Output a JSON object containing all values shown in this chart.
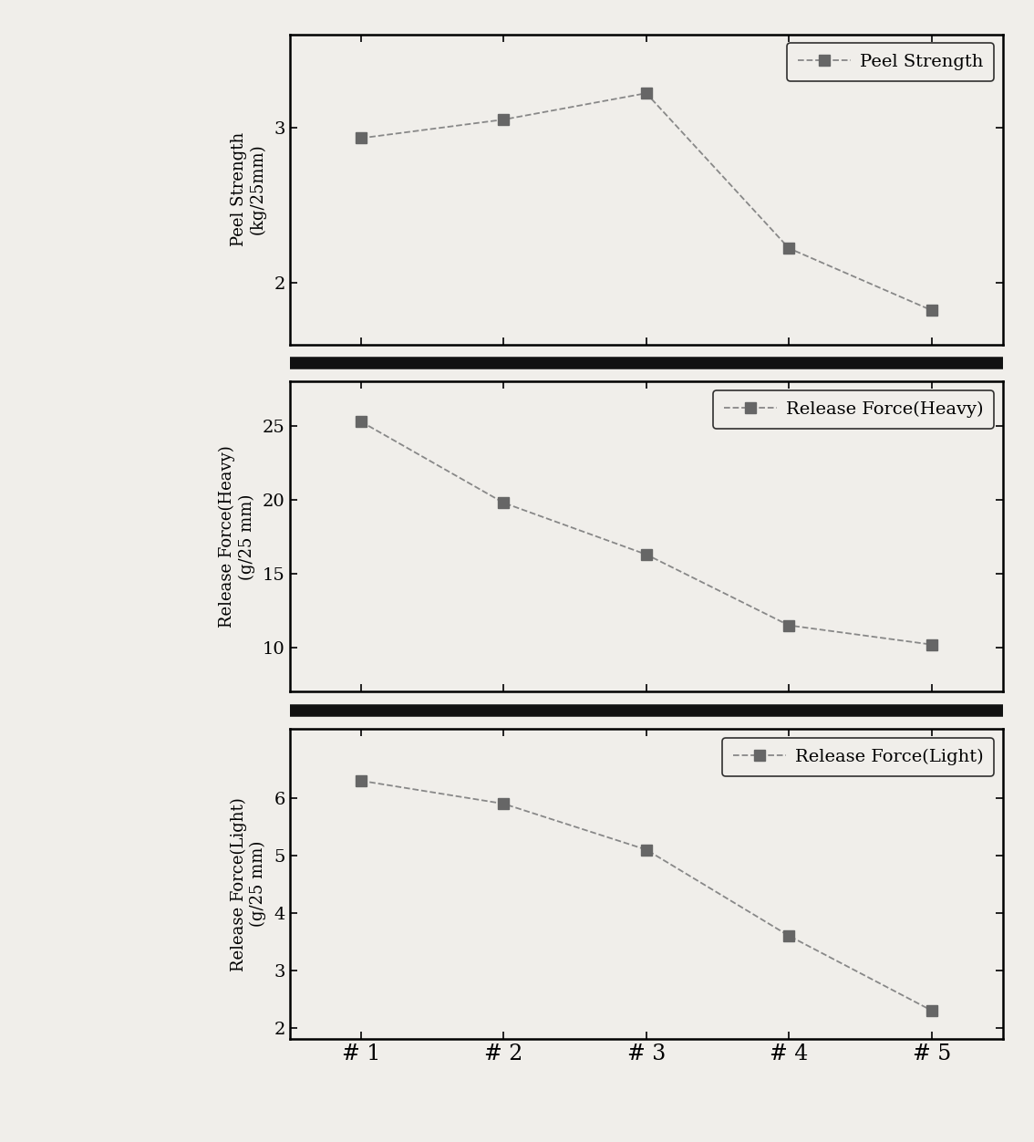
{
  "x_labels": [
    "# 1",
    "# 2",
    "# 3",
    "# 4",
    "# 5"
  ],
  "x_values": [
    1,
    2,
    3,
    4,
    5
  ],
  "peel_strength": [
    2.93,
    3.05,
    3.22,
    2.22,
    1.82
  ],
  "release_force_heavy": [
    25.3,
    19.8,
    16.3,
    11.5,
    10.2
  ],
  "release_force_light": [
    6.3,
    5.9,
    5.1,
    3.6,
    2.3
  ],
  "peel_ylabel1": "Peel Strength",
  "peel_ylabel2": "(kg/25mm)",
  "heavy_ylabel1": "Release Force(Heavy)",
  "heavy_ylabel2": "(g/25 mm)",
  "light_ylabel1": "Release Force(Light)",
  "light_ylabel2": "(g/25 mm)",
  "peel_legend": "Peel Strength",
  "heavy_legend": "Release Force(Heavy)",
  "light_legend": "Release Force(Light)",
  "peel_ylim": [
    1.6,
    3.6
  ],
  "peel_yticks": [
    2.0,
    3.0
  ],
  "heavy_ylim": [
    7.0,
    28.0
  ],
  "heavy_yticks": [
    10,
    15,
    20,
    25
  ],
  "light_ylim": [
    1.8,
    7.2
  ],
  "light_yticks": [
    2,
    3,
    4,
    5,
    6
  ],
  "line_color": "#888888",
  "marker_color": "#666666",
  "marker": "s",
  "markersize": 9,
  "linewidth": 1.3,
  "linestyle": "--",
  "xlabel_fontsize": 17,
  "ylabel_fontsize": 13,
  "tick_fontsize": 14,
  "legend_fontsize": 14,
  "background_color": "#f0eeea",
  "plot_bg_color": "#f0eeea",
  "separator_color": "#111111",
  "separator_linewidth": 4,
  "spine_linewidth": 1.8
}
